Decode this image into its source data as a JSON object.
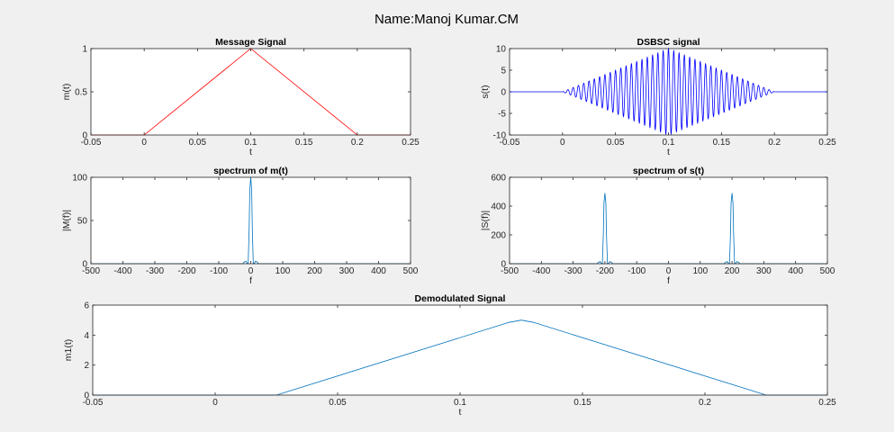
{
  "figure": {
    "suptitle": "Name:Manoj Kumar.CM"
  },
  "chart_data": [
    {
      "type": "line",
      "title": "Message Signal",
      "xlabel": "t",
      "ylabel": "m(t)",
      "xlim": [
        -0.05,
        0.25
      ],
      "ylim": [
        0,
        1
      ],
      "xticks": [
        "-0.05",
        "0",
        "0.05",
        "0.1",
        "0.15",
        "0.2",
        "0.25"
      ],
      "yticks": [
        "0",
        "0.5",
        "1"
      ],
      "grid": false,
      "series": [
        {
          "color": "#ff0000",
          "x": [
            -0.05,
            0,
            0.1,
            0.2,
            0.25
          ],
          "y": [
            0,
            0,
            1,
            0,
            0
          ]
        }
      ]
    },
    {
      "type": "line",
      "title": "DSBSC signal",
      "xlabel": "t",
      "ylabel": "s(t)",
      "xlim": [
        -0.05,
        0.25
      ],
      "ylim": [
        -10,
        10
      ],
      "xticks": [
        "-0.05",
        "0",
        "0.05",
        "0.1",
        "0.15",
        "0.2",
        "0.25"
      ],
      "yticks": [
        "-10",
        "-5",
        "0",
        "5",
        "10"
      ],
      "grid": false,
      "series": [
        {
          "color": "#0000ff",
          "x": [
            -0.05,
            0,
            0.1,
            0.2,
            0.25
          ],
          "y": [
            0,
            0,
            10,
            0,
            0
          ],
          "carrier_hz": 200
        }
      ]
    },
    {
      "type": "line",
      "title": "spectrum of m(t)",
      "xlabel": "f",
      "ylabel": "|M(f)|",
      "xlim": [
        -500,
        500
      ],
      "ylim": [
        0,
        100
      ],
      "xticks": [
        "-500",
        "-400",
        "-300",
        "-200",
        "-100",
        "0",
        "100",
        "200",
        "300",
        "400",
        "500"
      ],
      "yticks": [
        "0",
        "50",
        "100"
      ],
      "grid": false,
      "series": [
        {
          "color": "#0072bd",
          "x": [
            -500,
            -25,
            -20,
            -15,
            -12,
            -8,
            -5,
            -3,
            0,
            3,
            5,
            8,
            12,
            15,
            20,
            25,
            500
          ],
          "y": [
            0,
            0,
            2,
            3,
            1,
            0,
            40,
            85,
            100,
            85,
            40,
            0,
            1,
            3,
            2,
            0,
            0
          ]
        }
      ]
    },
    {
      "type": "line",
      "title": "spectrum of s(t)",
      "xlabel": "f",
      "ylabel": "|S(f)|",
      "xlim": [
        -500,
        500
      ],
      "ylim": [
        0,
        600
      ],
      "xticks": [
        "-500",
        "-400",
        "-300",
        "-200",
        "-100",
        "0",
        "100",
        "200",
        "300",
        "400",
        "500"
      ],
      "yticks": [
        "0",
        "200",
        "400",
        "600"
      ],
      "grid": false,
      "series": [
        {
          "color": "#0072bd",
          "x": [
            -500,
            -225,
            -220,
            -215,
            -212,
            -208,
            -205,
            -203,
            -200,
            -197,
            -195,
            -192,
            -188,
            -185,
            -180,
            -175,
            175,
            180,
            185,
            188,
            192,
            195,
            197,
            200,
            203,
            205,
            208,
            212,
            215,
            220,
            225,
            500
          ],
          "y": [
            0,
            0,
            10,
            15,
            5,
            0,
            200,
            420,
            490,
            420,
            200,
            0,
            5,
            15,
            10,
            0,
            0,
            10,
            15,
            5,
            0,
            200,
            420,
            490,
            420,
            200,
            0,
            5,
            15,
            10,
            0,
            0
          ]
        }
      ]
    },
    {
      "type": "line",
      "title": "Demodulated Signal",
      "xlabel": "t",
      "ylabel": "m1(t)",
      "xlim": [
        -0.05,
        0.25
      ],
      "ylim": [
        0,
        6
      ],
      "xticks": [
        "-0.05",
        "0",
        "0.05",
        "0.1",
        "0.15",
        "0.2",
        "0.25"
      ],
      "yticks": [
        "0",
        "2",
        "4",
        "6"
      ],
      "grid": false,
      "series": [
        {
          "color": "#0072bd",
          "x": [
            -0.05,
            0.025,
            0.12,
            0.125,
            0.13,
            0.225,
            0.25
          ],
          "y": [
            0,
            0,
            4.85,
            5,
            4.85,
            0,
            0
          ]
        }
      ]
    }
  ]
}
